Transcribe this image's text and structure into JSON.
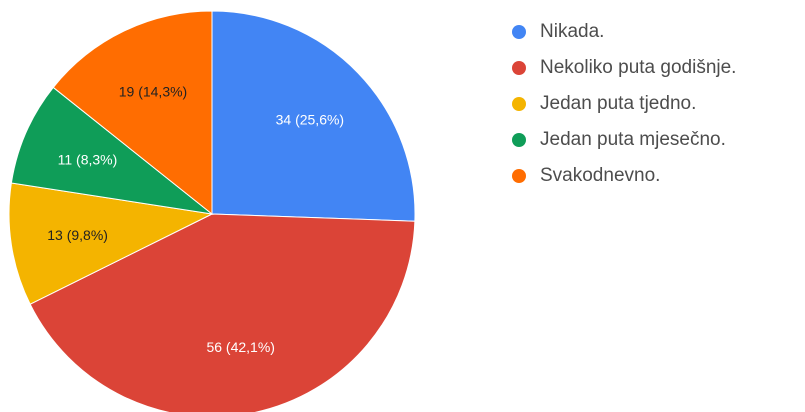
{
  "chart_data": {
    "type": "pie",
    "title": "",
    "legend_position": "right",
    "slices": [
      {
        "label": "Nikada.",
        "value": 34,
        "percent": "25,6%",
        "display": "34 (25,6%)",
        "color": "#4285f4",
        "label_color": "#ffffff"
      },
      {
        "label": "Nekoliko puta godišnje.",
        "value": 56,
        "percent": "42,1%",
        "display": "56 (42,1%)",
        "color": "#db4437",
        "label_color": "#ffffff"
      },
      {
        "label": "Jedan puta tjedno.",
        "value": 13,
        "percent": "9,8%",
        "display": "13 (9,8%)",
        "color": "#f4b400",
        "label_color": "#222222"
      },
      {
        "label": "Jedan puta mjesečno.",
        "value": 11,
        "percent": "8,3%",
        "display": "11 (8,3%)",
        "color": "#0f9d58",
        "label_color": "#ffffff"
      },
      {
        "label": "Svakodnevno.",
        "value": 19,
        "percent": "14,3%",
        "display": "19 (14,3%)",
        "color": "#ff6d01",
        "label_color": "#222222"
      }
    ]
  }
}
